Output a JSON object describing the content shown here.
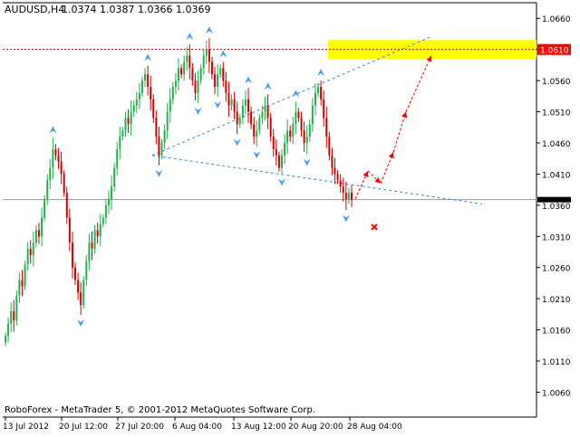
{
  "header": {
    "symbol_timeframe": "AUDUSD,H4",
    "ohlc": "1.0374 1.0387 1.0366 1.0369"
  },
  "footer": {
    "copyright": "RoboForex - MetaTrader 5, © 2001-2012 MetaQuotes Software Corp."
  },
  "colors": {
    "background": "#ffffff",
    "bull_candle": "#22b14c",
    "bear_candle": "#d40000",
    "fractal_arrow": "#4a9ee8",
    "trendline": "#3a85d8",
    "resistance_line": "#cc0000",
    "target_zone": "#ffff00",
    "forecast_arrow": "#ff0000",
    "price_label_bg": "#ff0000",
    "current_price_label_bg": "#000000"
  },
  "chart_data": {
    "type": "candlestick",
    "symbol": "AUDUSD",
    "timeframe": "H4",
    "ylim": [
      1.002,
      1.0685
    ],
    "y_ticks": [
      "1.0660",
      "1.0610",
      "1.0560",
      "1.0510",
      "1.0460",
      "1.0410",
      "1.0360",
      "1.0310",
      "1.0260",
      "1.0210",
      "1.0160",
      "1.0110",
      "1.0060"
    ],
    "x_ticks": [
      "13 Jul 2012",
      "20 Jul 12:00",
      "27 Jul 20:00",
      "6 Aug 04:00",
      "13 Aug 12:00",
      "20 Aug 20:00",
      "28 Aug 04:00"
    ],
    "resistance_level": 1.061,
    "resistance_label": "1.0610",
    "current_price": 1.0369,
    "target_zone": {
      "low": 1.0595,
      "high": 1.0625
    },
    "close_series": [
      1.015,
      1.017,
      1.019,
      1.0175,
      1.0215,
      1.024,
      1.023,
      1.0265,
      1.029,
      1.028,
      1.03,
      1.032,
      1.031,
      1.034,
      1.037,
      1.04,
      1.042,
      1.045,
      1.044,
      1.043,
      1.041,
      1.038,
      1.034,
      1.03,
      1.026,
      1.024,
      1.022,
      1.02,
      1.024,
      1.027,
      1.03,
      1.029,
      1.032,
      1.031,
      1.033,
      1.034,
      1.036,
      1.037,
      1.039,
      1.042,
      1.045,
      1.047,
      1.048,
      1.05,
      1.049,
      1.051,
      1.052,
      1.053,
      1.054,
      1.056,
      1.057,
      1.055,
      1.053,
      1.05,
      1.047,
      1.044,
      1.046,
      1.048,
      1.051,
      1.053,
      1.055,
      1.056,
      1.058,
      1.057,
      1.059,
      1.06,
      1.058,
      1.056,
      1.054,
      1.056,
      1.058,
      1.06,
      1.061,
      1.059,
      1.057,
      1.055,
      1.057,
      1.058,
      1.056,
      1.054,
      1.052,
      1.053,
      1.051,
      1.049,
      1.05,
      1.052,
      1.053,
      1.051,
      1.049,
      1.047,
      1.048,
      1.05,
      1.051,
      1.052,
      1.05,
      1.047,
      1.045,
      1.044,
      1.042,
      1.044,
      1.046,
      1.048,
      1.047,
      1.049,
      1.051,
      1.05,
      1.048,
      1.046,
      1.047,
      1.049,
      1.052,
      1.054,
      1.055,
      1.053,
      1.05,
      1.047,
      1.044,
      1.042,
      1.041,
      1.04,
      1.039,
      1.038,
      1.037,
      1.038,
      1.0369
    ],
    "forecast_path": [
      [
        1.037,
        1.0415
      ],
      [
        1.0415,
        1.0395
      ],
      [
        1.0395,
        1.0445
      ],
      [
        1.0445,
        1.051
      ],
      [
        1.051,
        1.06
      ]
    ],
    "invalidation_price": 1.0325
  }
}
